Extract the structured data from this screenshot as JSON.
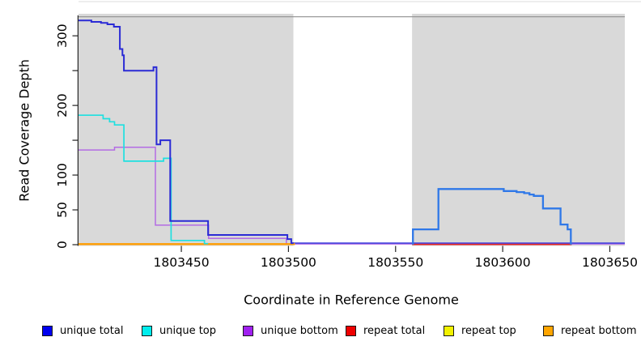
{
  "chart_data": {
    "type": "line",
    "subtype": "step-coverage",
    "xlabel": "Coordinate in Reference Genome",
    "ylabel": "Read Coverage Depth",
    "xlim": [
      1803402,
      1803657
    ],
    "ylim": [
      0,
      327
    ],
    "grid": false,
    "legend_position": "bottom",
    "axis_color": "#262626",
    "frame_top_color": "#8F8F8F",
    "device_top_line_color": "#DCDCDC",
    "x_ticks": [
      {
        "value": 1803450,
        "label": "1803450"
      },
      {
        "value": 1803500,
        "label": "1803500"
      },
      {
        "value": 1803550,
        "label": "1803550"
      },
      {
        "value": 1803600,
        "label": "1803600"
      },
      {
        "value": 1803650,
        "label": "1803650"
      }
    ],
    "y_ticks": [
      {
        "value": 0,
        "label": "0"
      },
      {
        "value": 50,
        "label": "50"
      },
      {
        "value": 100,
        "label": "100"
      },
      {
        "value": 150,
        "label": ""
      },
      {
        "value": 200,
        "label": "200"
      },
      {
        "value": 250,
        "label": ""
      },
      {
        "value": 300,
        "label": "300"
      }
    ],
    "shaded_regions": [
      {
        "start": 1803402,
        "end": 1803502.3,
        "fill": "#D9D9D9"
      },
      {
        "start": 1803557.7,
        "end": 1803657,
        "fill": "#D9D9D9"
      }
    ],
    "series": [
      {
        "name": "unique bottom",
        "color": "#B46CE4",
        "line_width": 1.5,
        "points": [
          [
            1803402,
            136
          ],
          [
            1803418.8,
            140
          ],
          [
            1803437.9,
            28
          ],
          [
            1803462.7,
            9
          ],
          [
            1803499,
            1
          ]
        ],
        "end": 1803657
      },
      {
        "name": "unique total (gap baseline)",
        "color": "#4545DE",
        "line_width": 1.6,
        "points": [
          [
            1803502.3,
            2.2
          ]
        ],
        "end": 1803657
      },
      {
        "name": "repeat total",
        "color": "#E02020",
        "line_width": 1.6,
        "points": [
          [
            1803557.7,
            0.4
          ]
        ],
        "end": 1803632.2
      },
      {
        "name": "repeat bottom",
        "color": "#FF9C00",
        "line_width": 2.3,
        "points": [
          [
            1803402,
            0.8
          ]
        ],
        "end": 1803503
      },
      {
        "name": "unique top",
        "color": "#1EE0E0",
        "line_width": 1.7,
        "points": [
          [
            1803402,
            186
          ],
          [
            1803413.5,
            181
          ],
          [
            1803416.5,
            176.5
          ],
          [
            1803418.8,
            172
          ],
          [
            1803423.2,
            120
          ],
          [
            1803441.7,
            124
          ],
          [
            1803445.2,
            6
          ],
          [
            1803460.8,
            1.5
          ]
        ],
        "end": 1803462.5
      },
      {
        "name": "unique total (left region)",
        "color": "#2B2BD5",
        "line_width": 2,
        "points": [
          [
            1803402,
            322
          ],
          [
            1803408,
            320
          ],
          [
            1803412.5,
            318.5
          ],
          [
            1803415.5,
            316.5
          ],
          [
            1803418.5,
            313
          ],
          [
            1803421.3,
            281
          ],
          [
            1803422.5,
            272
          ],
          [
            1803423.2,
            250
          ],
          [
            1803437,
            255
          ],
          [
            1803438.4,
            144
          ],
          [
            1803440.2,
            150
          ],
          [
            1803444.8,
            34
          ],
          [
            1803462.5,
            14
          ],
          [
            1803499.5,
            8
          ],
          [
            1803501.3,
            2.2
          ]
        ],
        "end": 1803502.4
      },
      {
        "name": "unique total (right region)",
        "color": "#2F78E8",
        "line_width": 2.3,
        "points": [
          [
            1803557.7,
            1.5
          ],
          [
            1803558.1,
            22
          ],
          [
            1803570,
            80
          ],
          [
            1803600.5,
            77
          ],
          [
            1803606.5,
            75.5
          ],
          [
            1803610,
            74
          ],
          [
            1803612.5,
            72
          ],
          [
            1803614.5,
            70
          ],
          [
            1803618.8,
            52
          ],
          [
            1803627,
            29
          ],
          [
            1803630.3,
            22
          ],
          [
            1803631.8,
            1.5
          ]
        ],
        "end": 1803632.3
      }
    ],
    "legend": [
      {
        "label": "unique total",
        "color": "#0000F0"
      },
      {
        "label": "unique top",
        "color": "#00EDED"
      },
      {
        "label": "unique bottom",
        "color": "#A020F0"
      },
      {
        "label": "repeat total",
        "color": "#EE0000"
      },
      {
        "label": "repeat top",
        "color": "#F2F200"
      },
      {
        "label": "repeat bottom",
        "color": "#FFA500"
      }
    ]
  }
}
